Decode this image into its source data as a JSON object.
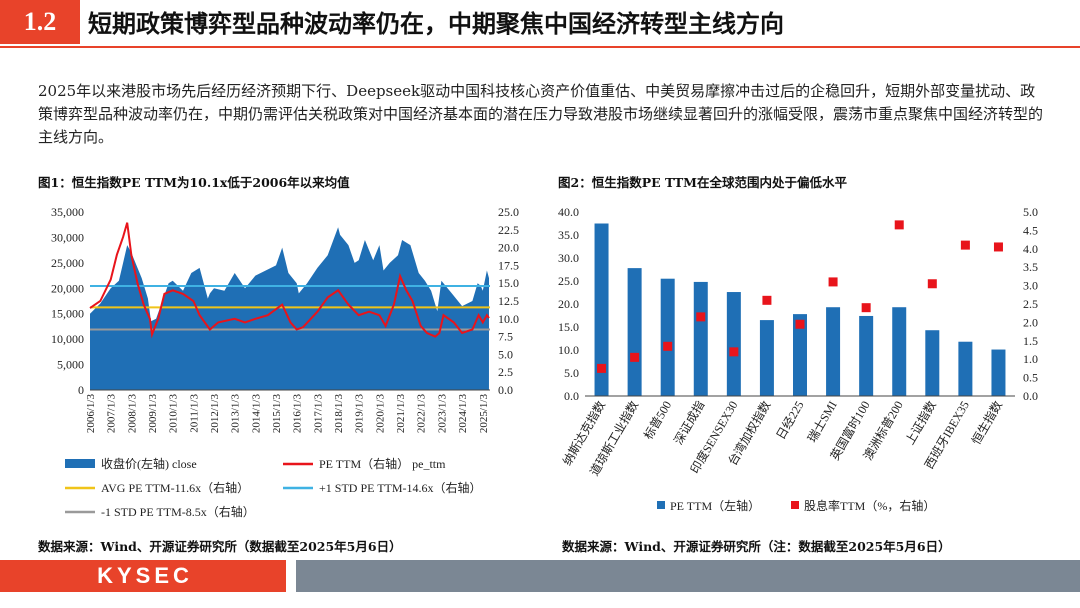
{
  "header": {
    "section_number": "1.2",
    "title": "短期政策博弈型品种波动率仍在，中期聚焦中国经济转型主线方向"
  },
  "intro_text": "2025年以来港股市场先后经历经济预期下行、Deepseek驱动中国科技核心资产价值重估、中美贸易摩擦冲击过后的企稳回升，短期外部变量扰动、政策博弈型品种波动率仍在，中期仍需评估关税政策对中国经济基本面的潜在压力导致港股市场继续显著回升的涨幅受限，震荡市重点聚焦中国经济转型的主线方向。",
  "figure1": {
    "title": "图1：恒生指数PE TTM为10.1x低于2006年以来均值",
    "source": "数据来源：Wind、开源证券研究所（数据截至2025年5月6日）"
  },
  "figure2": {
    "title": "图2：恒生指数PE TTM在全球范围内处于偏低水平",
    "source": "数据来源：Wind、开源证券研究所（注：数据截至2025年5月6日）"
  },
  "footer": {
    "logo": "KYSEC"
  },
  "colors": {
    "accent": "#e8432a",
    "bar_blue": "#1f6fb5",
    "pe_red": "#e8141b",
    "avg_yellow": "#f0c419",
    "std_plus_cyan": "#3fb2e3",
    "std_minus_gray": "#9a9a9a",
    "footer_gray": "#7b8794"
  },
  "chart_data": [
    {
      "type": "area",
      "id": "hsi_close_vs_pe",
      "title": "恒生指数PE TTM为10.1x低于2006年以来均值",
      "left_axis": {
        "min": 0,
        "max": 35000,
        "step": 5000,
        "tick_labels": [
          "0",
          "5,000",
          "10,000",
          "15,000",
          "20,000",
          "25,000",
          "30,000",
          "35,000"
        ]
      },
      "right_axis": {
        "min": 0,
        "max": 25,
        "step": 2.5,
        "tick_labels": [
          "0.0",
          "2.5",
          "5.0",
          "7.5",
          "10.0",
          "12.5",
          "15.0",
          "17.5",
          "20.0",
          "22.5",
          "25.0"
        ]
      },
      "x_tick_labels": [
        "2006/1/3",
        "2007/1/3",
        "2008/1/3",
        "2009/1/3",
        "2010/1/3",
        "2011/1/3",
        "2012/1/3",
        "2013/1/3",
        "2014/1/3",
        "2015/1/3",
        "2016/1/3",
        "2017/1/3",
        "2018/1/3",
        "2019/1/3",
        "2020/1/3",
        "2021/1/3",
        "2022/1/3",
        "2023/1/3",
        "2024/1/3",
        "2025/1/3"
      ],
      "series": [
        {
          "name": "收盘价(左轴)  close",
          "axis": "left",
          "kind": "area",
          "x": [
            2006.0,
            2006.5,
            2007.0,
            2007.4,
            2007.6,
            2007.8,
            2008.0,
            2008.3,
            2008.5,
            2008.8,
            2008.95,
            2009.2,
            2009.5,
            2009.8,
            2010.0,
            2010.5,
            2010.9,
            2011.3,
            2011.7,
            2011.8,
            2012.0,
            2012.5,
            2013.0,
            2013.5,
            2014.0,
            2014.5,
            2015.0,
            2015.3,
            2015.6,
            2016.0,
            2016.1,
            2016.5,
            2017.0,
            2017.5,
            2018.0,
            2018.1,
            2018.5,
            2018.8,
            2019.0,
            2019.3,
            2019.7,
            2020.0,
            2020.2,
            2020.5,
            2020.9,
            2021.1,
            2021.5,
            2021.9,
            2022.2,
            2022.5,
            2022.8,
            2023.0,
            2023.5,
            2023.9,
            2024.0,
            2024.5,
            2024.75,
            2024.9,
            2025.0,
            2025.2,
            2025.3
          ],
          "y": [
            15000,
            17000,
            20000,
            21500,
            25000,
            28500,
            27000,
            24000,
            22000,
            18000,
            13500,
            14000,
            17500,
            21000,
            21500,
            19500,
            23000,
            24000,
            18000,
            19000,
            20000,
            19500,
            23000,
            20000,
            22500,
            23500,
            24500,
            28000,
            23000,
            21000,
            19000,
            21000,
            24000,
            26500,
            32000,
            30500,
            28500,
            25000,
            25500,
            29500,
            25500,
            28500,
            23500,
            25000,
            26500,
            29500,
            28500,
            23000,
            21500,
            19500,
            15500,
            21500,
            19000,
            17000,
            16500,
            17500,
            21000,
            20500,
            19500,
            23500,
            22000
          ]
        },
        {
          "name": "PE TTM（右轴）  pe_ttm",
          "axis": "right",
          "kind": "line",
          "x": [
            2006.0,
            2006.5,
            2007.0,
            2007.3,
            2007.6,
            2007.8,
            2008.0,
            2008.3,
            2008.6,
            2008.9,
            2009.0,
            2009.3,
            2009.6,
            2010.0,
            2010.5,
            2011.0,
            2011.3,
            2011.8,
            2012.2,
            2013.0,
            2013.5,
            2014.0,
            2014.6,
            2015.3,
            2015.7,
            2016.0,
            2016.3,
            2017.0,
            2017.5,
            2018.0,
            2018.5,
            2019.0,
            2019.5,
            2020.0,
            2020.3,
            2020.7,
            2021.0,
            2021.3,
            2021.6,
            2022.0,
            2022.3,
            2022.7,
            2022.9,
            2023.1,
            2023.6,
            2024.0,
            2024.5,
            2024.8,
            2025.0,
            2025.2,
            2025.3
          ],
          "y": [
            11.5,
            12.5,
            15.5,
            19.0,
            21.5,
            23.5,
            19.0,
            15.0,
            12.0,
            10.0,
            7.8,
            10.0,
            13.5,
            14.0,
            13.5,
            12.5,
            10.5,
            8.5,
            9.5,
            10.0,
            9.5,
            10.0,
            10.5,
            12.0,
            9.5,
            8.5,
            8.8,
            11.0,
            13.0,
            14.0,
            12.0,
            10.5,
            11.0,
            10.5,
            9.0,
            12.0,
            16.0,
            14.0,
            12.5,
            9.0,
            8.0,
            7.5,
            8.0,
            10.5,
            9.5,
            8.0,
            8.5,
            10.5,
            9.5,
            10.5,
            10.1
          ]
        },
        {
          "name": "AVG PE TTM-11.6x（右轴）",
          "axis": "right",
          "kind": "hline",
          "value": 11.6
        },
        {
          "name": "+1 STD PE TTM-14.6x（右轴）",
          "axis": "right",
          "kind": "hline",
          "value": 14.6
        },
        {
          "name": "-1 STD PE TTM-8.5x（右轴）",
          "axis": "right",
          "kind": "hline",
          "value": 8.5
        }
      ]
    },
    {
      "type": "bar",
      "id": "global_pe_comparison",
      "title": "恒生指数PE TTM在全球范围内处于偏低水平",
      "categories": [
        "纳斯达克指数",
        "道琼斯工业指数",
        "标普500",
        "深证成指",
        "印度SENSEX30",
        "台湾加权指数",
        "日经225",
        "瑞士SMI",
        "英国富时100",
        "澳洲标普200",
        "上证指数",
        "西班牙IBEX35",
        "恒生指数"
      ],
      "left_axis": {
        "min": 0,
        "max": 40,
        "step": 5,
        "tick_labels": [
          "0.0",
          "5.0",
          "10.0",
          "15.0",
          "20.0",
          "25.0",
          "30.0",
          "35.0",
          "40.0"
        ]
      },
      "right_axis": {
        "min": 0,
        "max": 5,
        "step": 0.5,
        "tick_labels": [
          "0.0",
          "0.5",
          "1.0",
          "1.5",
          "2.0",
          "2.5",
          "3.0",
          "3.5",
          "4.0",
          "4.5",
          "5.0"
        ]
      },
      "series": [
        {
          "name": "PE TTM（左轴）",
          "axis": "left",
          "kind": "bar",
          "values": [
            37.5,
            27.8,
            25.5,
            24.8,
            22.6,
            16.5,
            17.8,
            19.3,
            17.4,
            19.3,
            14.3,
            11.8,
            10.1
          ]
        },
        {
          "name": "股息率TTM（%，右轴）",
          "axis": "right",
          "kind": "marker",
          "values": [
            0.75,
            1.05,
            1.35,
            2.15,
            1.2,
            2.6,
            1.95,
            3.1,
            2.4,
            4.65,
            3.05,
            4.1,
            4.05
          ]
        }
      ]
    }
  ]
}
